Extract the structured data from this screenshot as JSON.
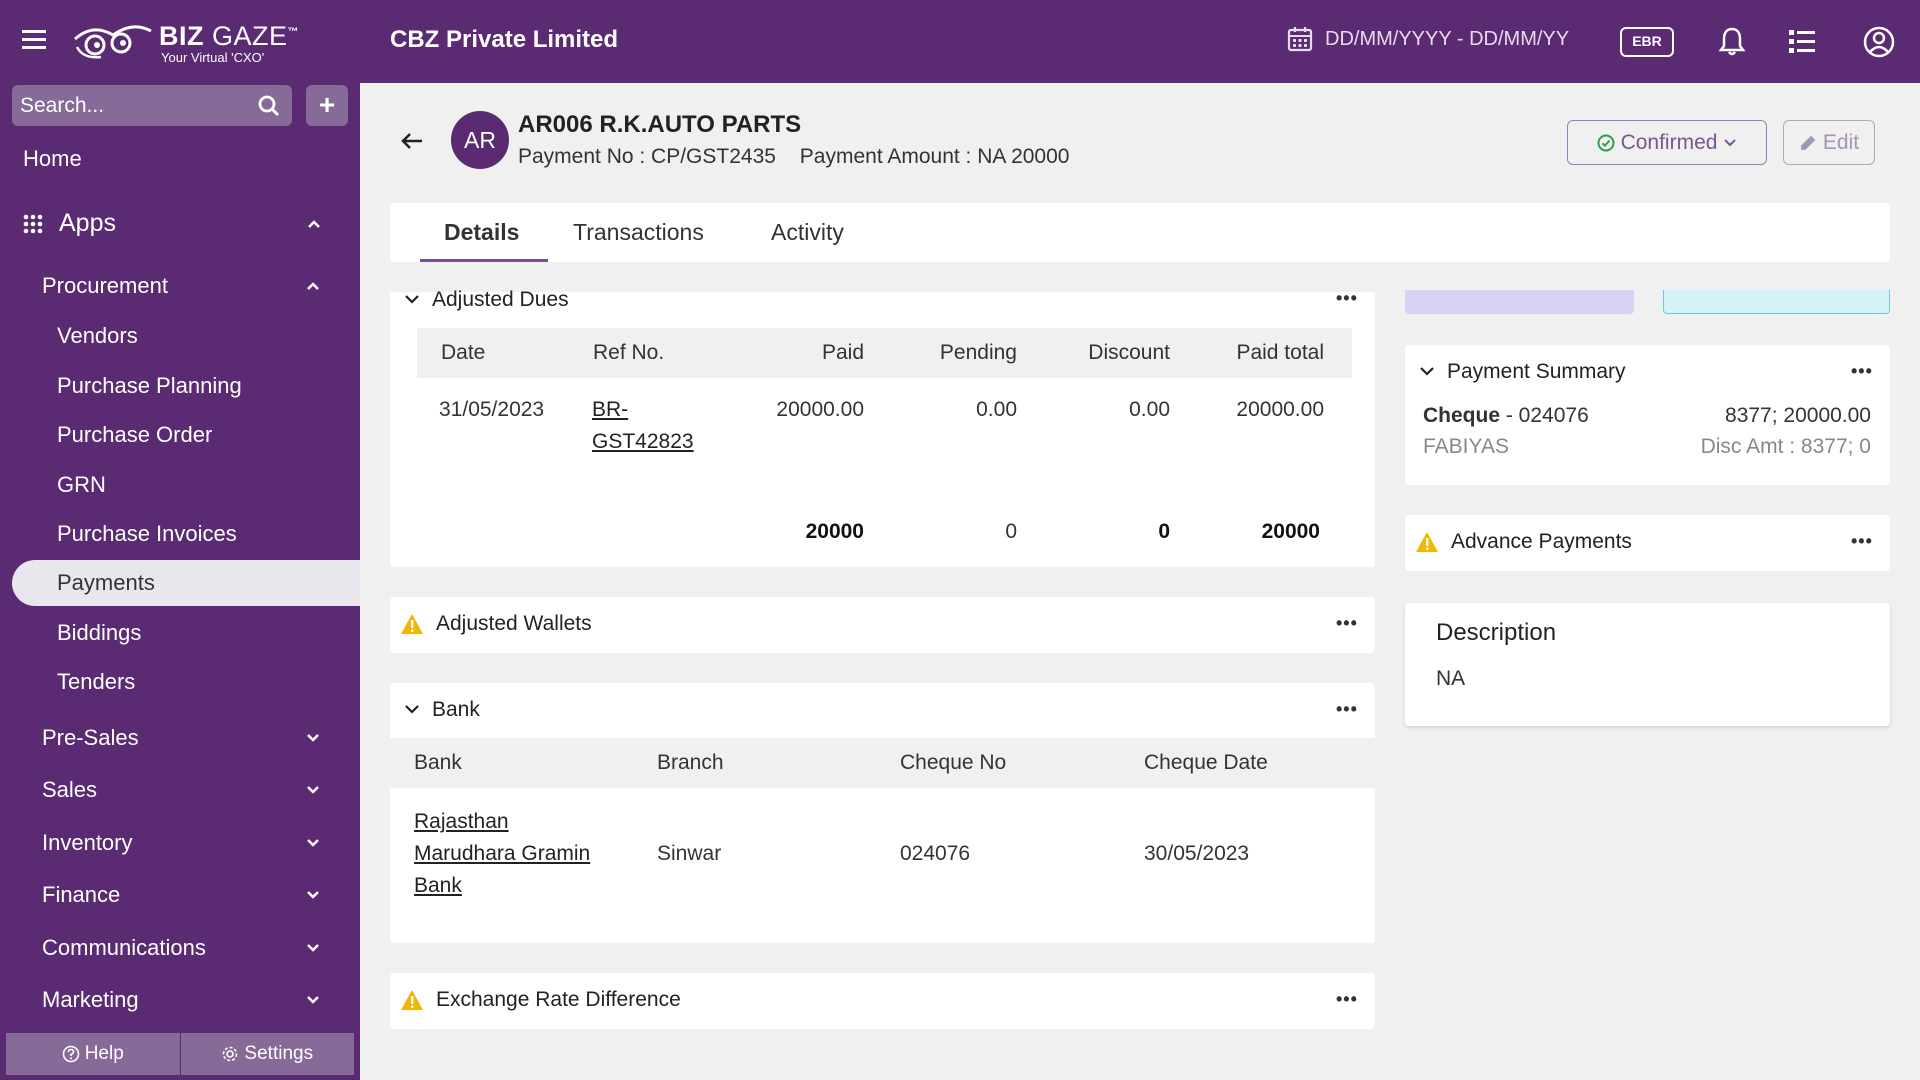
{
  "topbar": {
    "logo_main": "BIZ",
    "logo_main2": "GAZE",
    "logo_tm": "™",
    "logo_sub": "Your Virtual 'CXO'",
    "company": "CBZ Private Limited",
    "date_range": "DD/MM/YYYY - DD/MM/YY",
    "ebr_label": "EBR"
  },
  "sidebar": {
    "search_placeholder": "Search...",
    "add_label": "+",
    "home": "Home",
    "apps": "Apps",
    "procurement": "Procurement",
    "procurement_items": [
      "Vendors",
      "Purchase Planning",
      "Purchase Order",
      "GRN",
      "Purchase Invoices",
      "Payments",
      "Biddings",
      "Tenders"
    ],
    "active_item": "Payments",
    "sections": [
      "Pre-Sales",
      "Sales",
      "Inventory",
      "Finance",
      "Communications",
      "Marketing"
    ],
    "help": "Help",
    "settings": "Settings"
  },
  "record": {
    "avatar": "AR",
    "title": "AR006 R.K.AUTO PARTS",
    "payment_no": "Payment No : CP/GST2435",
    "payment_amount": "Payment Amount : NA 20000",
    "status": "Confirmed",
    "edit": "Edit"
  },
  "tabs": [
    "Details",
    "Transactions",
    "Activity"
  ],
  "adjusted_dues": {
    "title": "Adjusted Dues",
    "columns": [
      "Date",
      "Ref No.",
      "Paid",
      "Pending",
      "Discount",
      "Paid total"
    ],
    "rows": [
      {
        "date": "31/05/2023",
        "ref_line1": "BR-",
        "ref_line2": "GST42823",
        "paid": "20000.00",
        "pending": "0.00",
        "discount": "0.00",
        "paid_total": "20000.00"
      }
    ],
    "totals": {
      "paid": "20000",
      "pending": "0",
      "discount": "0",
      "paid_total": "20000"
    }
  },
  "adjusted_wallets": {
    "title": "Adjusted Wallets"
  },
  "bank": {
    "title": "Bank",
    "columns": [
      "Bank",
      "Branch",
      "Cheque No",
      "Cheque Date"
    ],
    "rows": [
      {
        "bank_line1": "Rajasthan",
        "bank_line2": "Marudhara Gramin",
        "bank_line3": "Bank",
        "branch": "Sinwar",
        "cheque_no": "024076",
        "cheque_date": "30/05/2023"
      }
    ]
  },
  "exchange_rate": {
    "title": "Exchange Rate Difference"
  },
  "payment_summary": {
    "title": "Payment Summary",
    "mode": "Cheque",
    "cheque_no": " - 024076",
    "amounts": "8377; 20000.00",
    "payee": "FABIYAS",
    "disc": "Disc Amt : 8377; 0"
  },
  "advance_payments": {
    "title": "Advance Payments"
  },
  "description": {
    "title": "Description",
    "value": "NA"
  },
  "colors": {
    "brand": "#5a2a72",
    "warning": "#f2b705",
    "success": "#2e9d4a"
  }
}
